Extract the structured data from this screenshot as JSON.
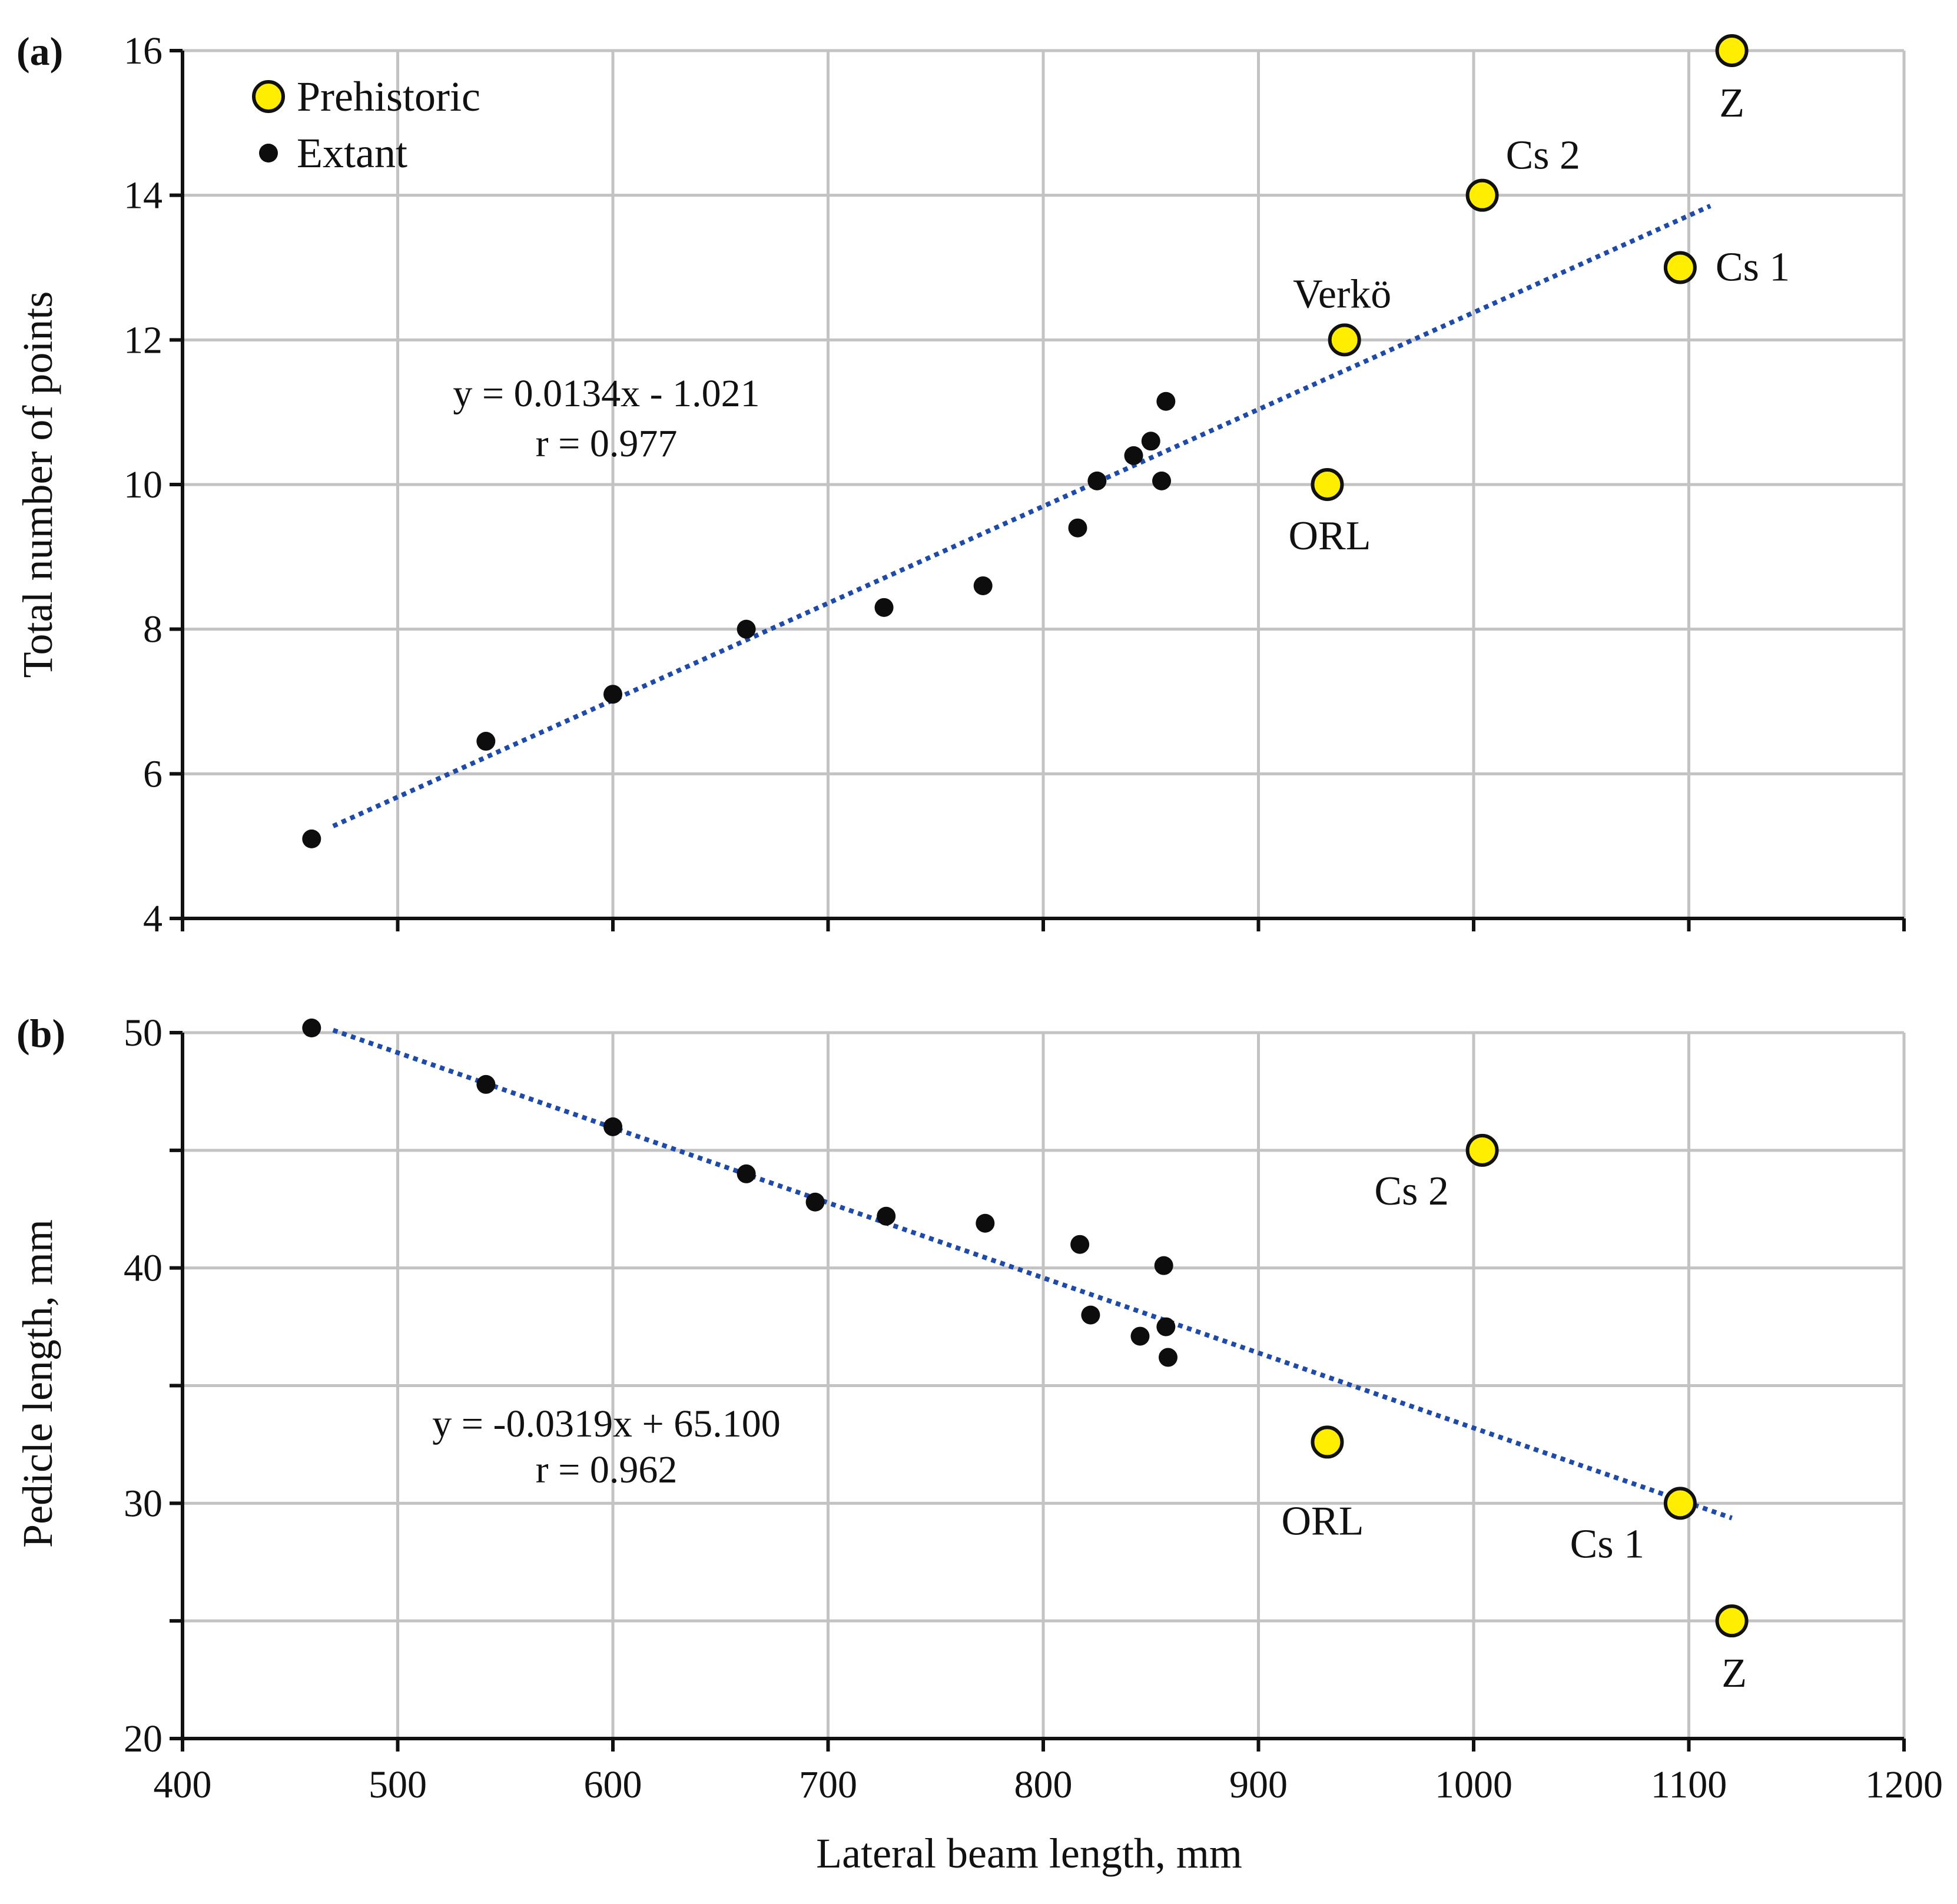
{
  "chart_data": [
    {
      "type": "scatter",
      "panel_label": "(a)",
      "xlabel": "Lateral beam length, mm",
      "ylabel": "Total number of points",
      "xlim": [
        400,
        1200
      ],
      "ylim": [
        4,
        16
      ],
      "x_ticks": [
        400,
        500,
        600,
        700,
        800,
        900,
        1000,
        1100,
        1200
      ],
      "y_ticks": [
        4,
        6,
        8,
        10,
        12,
        14,
        16
      ],
      "grid": true,
      "legend": {
        "position": "top-left",
        "entries": [
          {
            "label": "Prehistoric",
            "marker": "yellow-circle"
          },
          {
            "label": "Extant",
            "marker": "black-dot"
          }
        ]
      },
      "series": [
        {
          "name": "Extant",
          "color": "#0d0d0d",
          "points": [
            {
              "x": 460,
              "y": 5.1
            },
            {
              "x": 541,
              "y": 6.45
            },
            {
              "x": 600,
              "y": 7.1
            },
            {
              "x": 662,
              "y": 8.0
            },
            {
              "x": 726,
              "y": 8.3
            },
            {
              "x": 772,
              "y": 8.6
            },
            {
              "x": 816,
              "y": 9.4
            },
            {
              "x": 825,
              "y": 10.05
            },
            {
              "x": 842,
              "y": 10.4
            },
            {
              "x": 850,
              "y": 10.6
            },
            {
              "x": 855,
              "y": 10.05
            },
            {
              "x": 857,
              "y": 11.15
            }
          ]
        },
        {
          "name": "Prehistoric",
          "color": "#ffee00",
          "points": [
            {
              "x": 1120,
              "y": 16.0,
              "label": "Z"
            },
            {
              "x": 1004,
              "y": 14.0,
              "label": "Cs 2"
            },
            {
              "x": 1096,
              "y": 13.0,
              "label": "Cs 1"
            },
            {
              "x": 940,
              "y": 12.0,
              "label": "Verkö"
            },
            {
              "x": 932,
              "y": 10.0,
              "label": "ORL"
            }
          ]
        }
      ],
      "fit": {
        "slope": 0.0134,
        "intercept": -1.021,
        "x_range": [
          470,
          1110
        ],
        "color": "#1f4aa8"
      },
      "annotations": {
        "equation": "y = 0.0134x - 1.021",
        "r": "r = 0.977"
      }
    },
    {
      "type": "scatter",
      "panel_label": "(b)",
      "xlabel": "Lateral beam length, mm",
      "ylabel": "Pedicle length, mm",
      "xlim": [
        400,
        1200
      ],
      "ylim": [
        20,
        50
      ],
      "x_ticks": [
        400,
        500,
        600,
        700,
        800,
        900,
        1000,
        1100,
        1200
      ],
      "y_ticks": [
        20,
        25,
        30,
        35,
        40,
        45,
        50
      ],
      "y_tick_labels": [
        "20",
        "",
        "30",
        "",
        "40",
        "",
        "50"
      ],
      "grid": true,
      "series": [
        {
          "name": "Extant",
          "color": "#0d0d0d",
          "points": [
            {
              "x": 460,
              "y": 50.2
            },
            {
              "x": 541,
              "y": 47.8
            },
            {
              "x": 600,
              "y": 46.0
            },
            {
              "x": 662,
              "y": 44.0
            },
            {
              "x": 694,
              "y": 42.8
            },
            {
              "x": 727,
              "y": 42.2
            },
            {
              "x": 773,
              "y": 41.9
            },
            {
              "x": 817,
              "y": 41.0
            },
            {
              "x": 822,
              "y": 38.0
            },
            {
              "x": 845,
              "y": 37.1
            },
            {
              "x": 856,
              "y": 40.1
            },
            {
              "x": 857,
              "y": 37.5
            },
            {
              "x": 858,
              "y": 36.2
            }
          ]
        },
        {
          "name": "Prehistoric",
          "color": "#ffee00",
          "points": [
            {
              "x": 1004,
              "y": 45.0,
              "label": "Cs 2"
            },
            {
              "x": 932,
              "y": 32.6,
              "label": "ORL"
            },
            {
              "x": 1096,
              "y": 30.0,
              "label": "Cs 1"
            },
            {
              "x": 1120,
              "y": 25.0,
              "label": "Z"
            }
          ]
        }
      ],
      "fit": {
        "slope": -0.0319,
        "intercept": 65.1,
        "x_range": [
          470,
          1120
        ],
        "color": "#1f4aa8"
      },
      "annotations": {
        "equation": "y = -0.0319x + 65.100",
        "r": "r = 0.962"
      }
    }
  ]
}
